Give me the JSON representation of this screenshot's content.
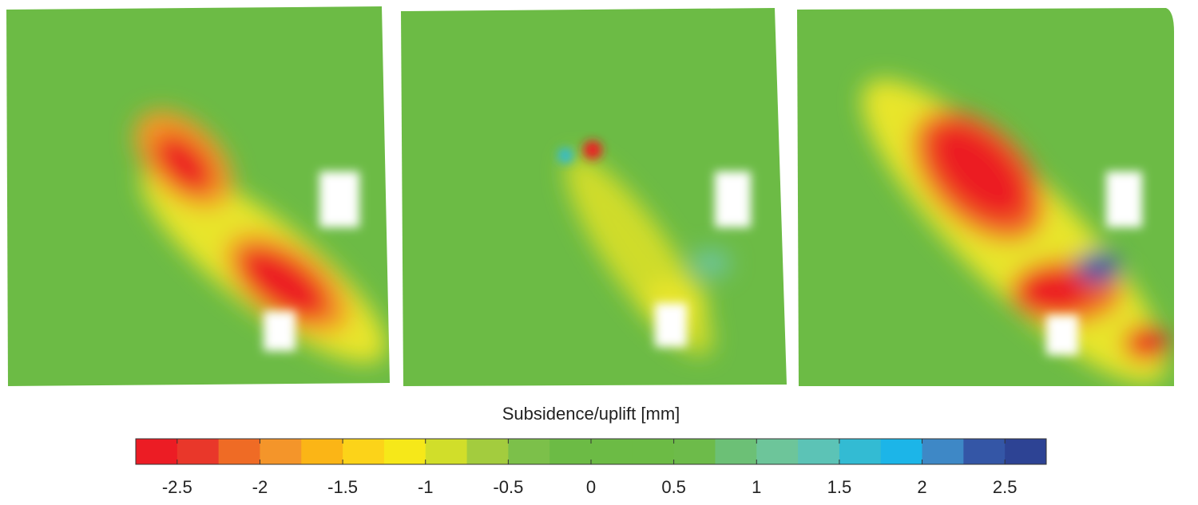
{
  "chart_data": {
    "type": "colorbar",
    "title": "Subsidence/uplift [mm]",
    "xlim": [
      -2.75,
      2.75
    ],
    "xticks": [
      -2.5,
      -2,
      -1.5,
      -1,
      -0.5,
      0,
      0.5,
      1,
      1.5,
      2,
      2.5
    ],
    "colors": [
      "#ec1c24",
      "#e9372a",
      "#ef6b25",
      "#f4952a",
      "#fbb516",
      "#fcd319",
      "#f6e819",
      "#d1de2a",
      "#a3cc3e",
      "#7cc04a",
      "#6cbb45",
      "#6cbb45",
      "#6cbb45",
      "#6dbb4a",
      "#6cc076",
      "#6dc59a",
      "#5cc3b6",
      "#33bbd3",
      "#1cb5e8",
      "#3e88c6",
      "#3456a6",
      "#2d4394"
    ]
  }
}
